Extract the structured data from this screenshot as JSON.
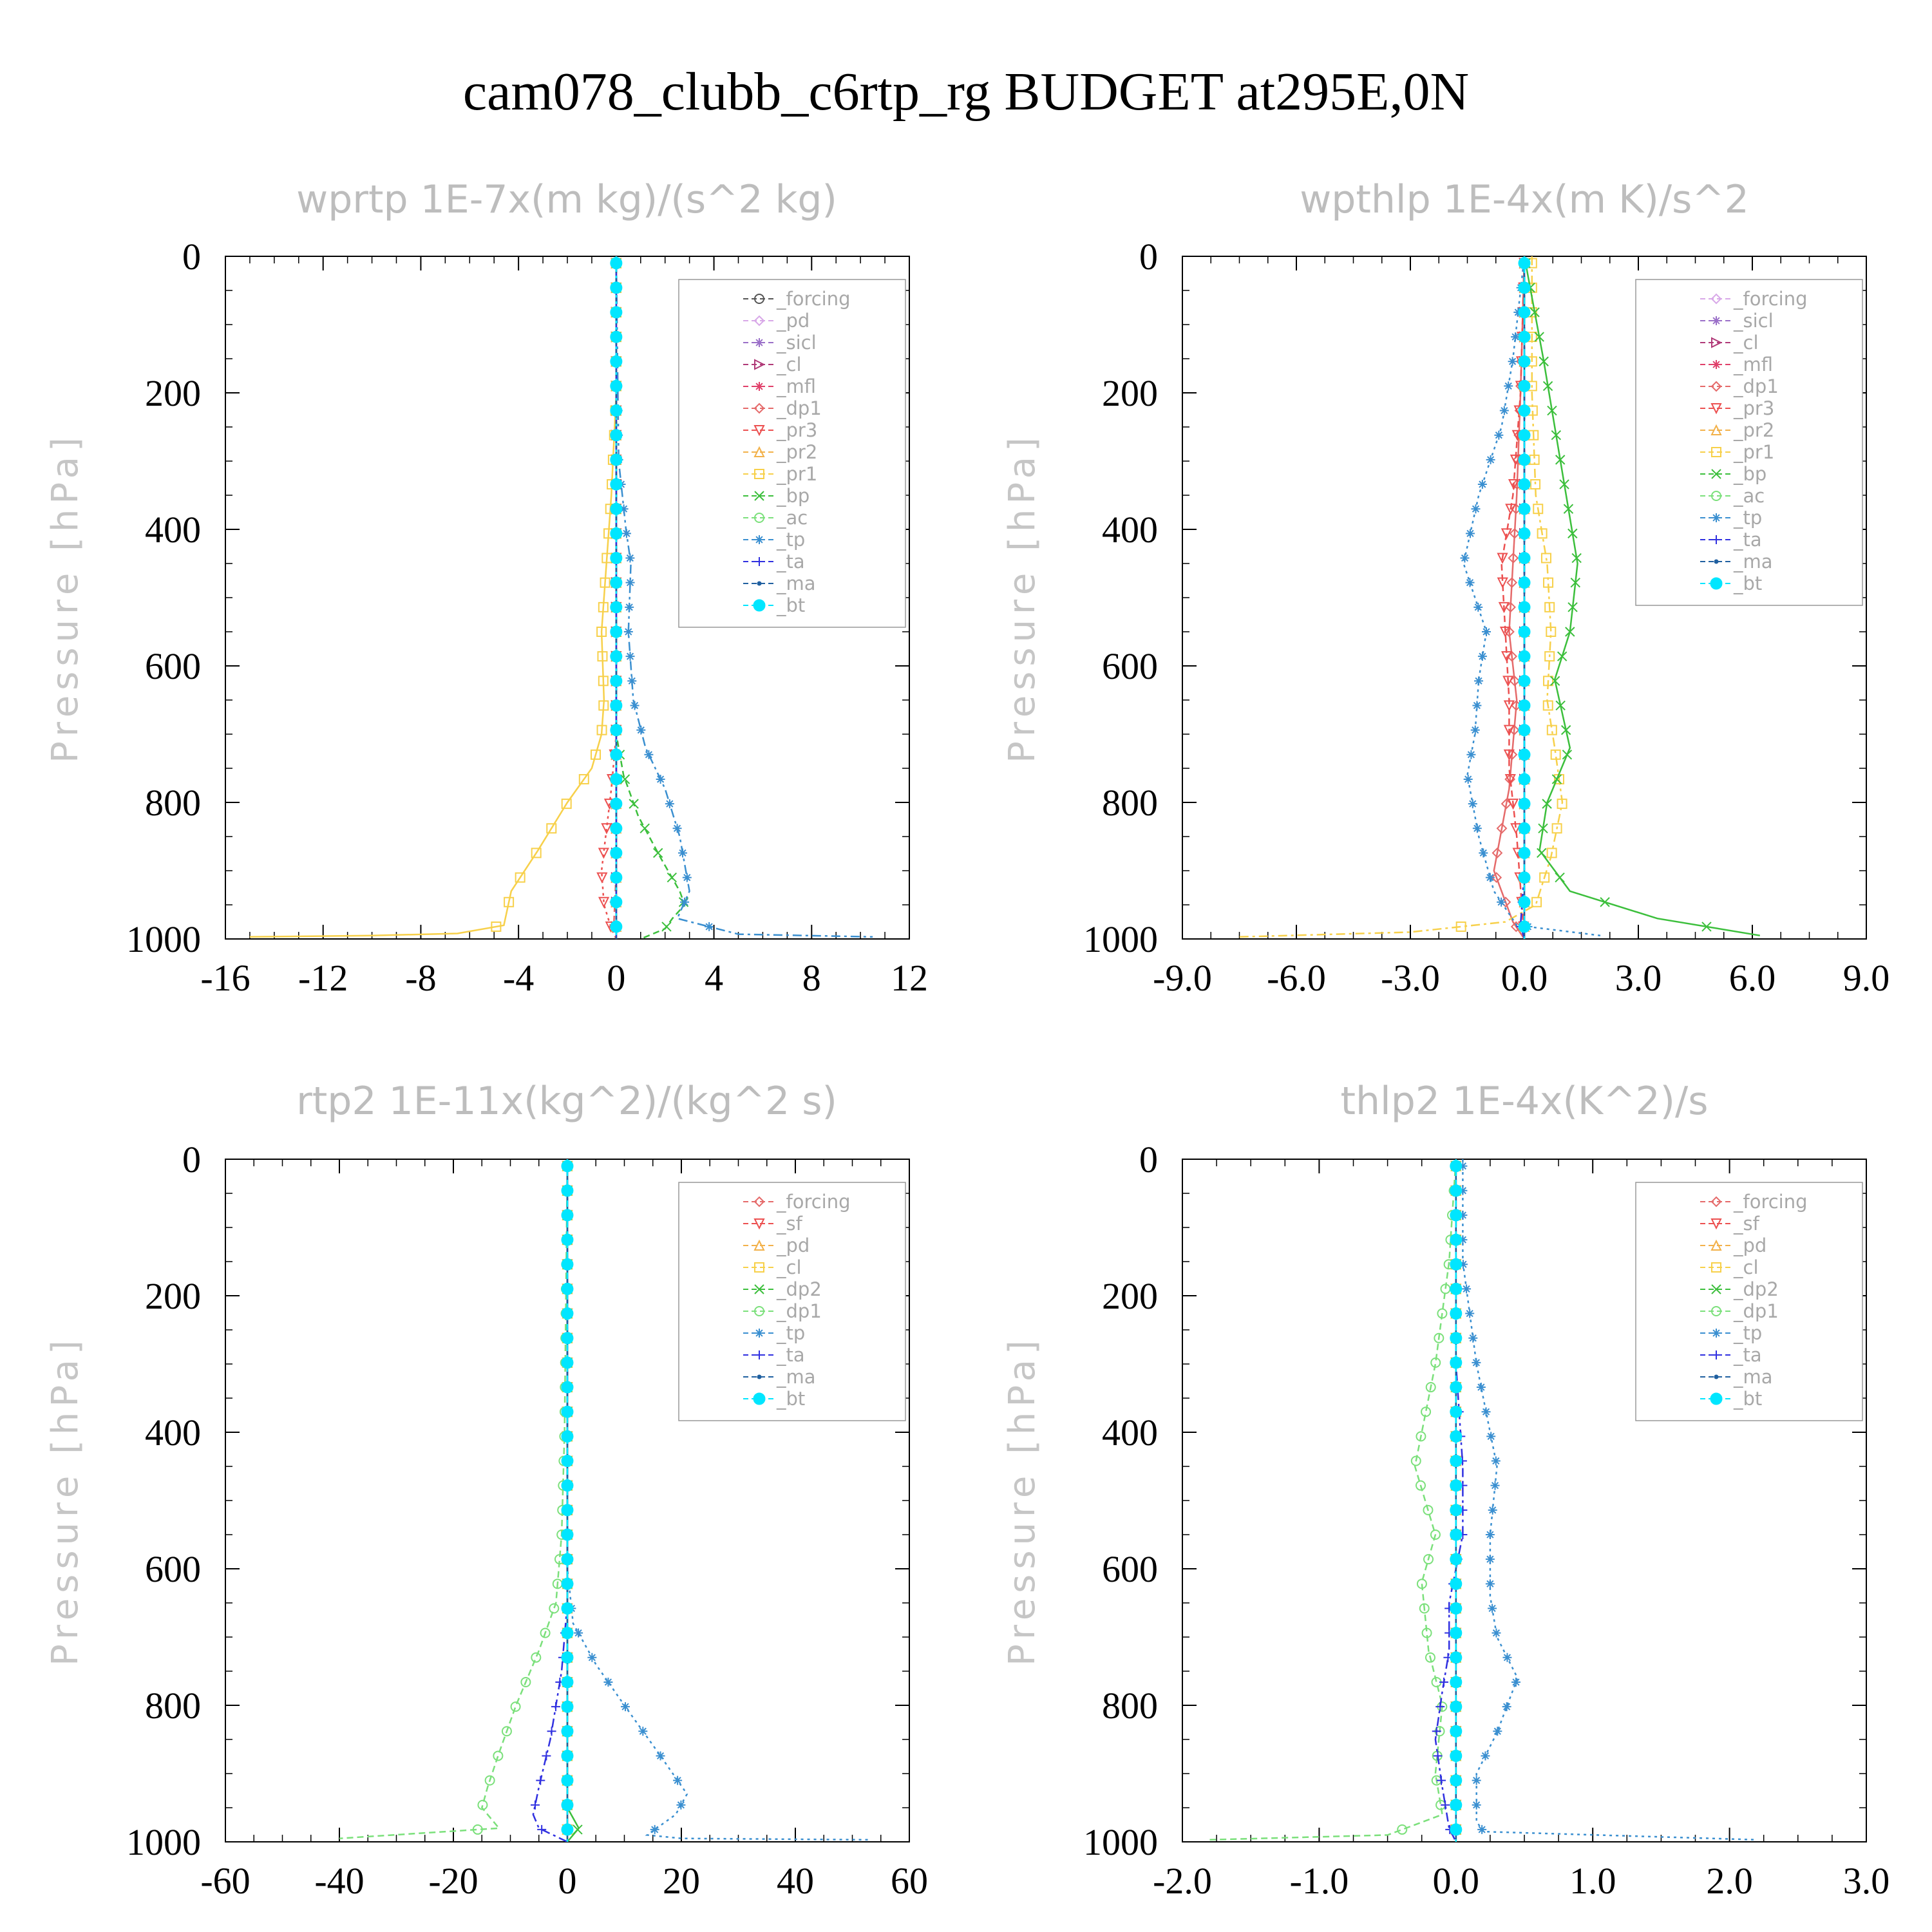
{
  "figure": {
    "title": "cam078_clubb_c6rtp_rg  BUDGET at295E,0N"
  },
  "colors": {
    "forcing": "#555555",
    "pd": "#d8a8e8",
    "sicl": "#9a6fc8",
    "cl": "#b03a78",
    "mfl": "#e0406a",
    "dp1": "#e56a6a",
    "pr3": "#ec5050",
    "pr2": "#f2b14a",
    "pr1": "#f7d04a",
    "bp": "#3cbf3c",
    "ac": "#7be07b",
    "tp": "#3a8fd0",
    "ta": "#3030e0",
    "ma": "#2060a0",
    "bt": "#00e6ff"
  },
  "chart_data": [
    {
      "type": "line",
      "title": "wprtp   1E-7x(m kg)/(s^2 kg)",
      "ylabel": "Pressure [hPa]",
      "xlim": [
        -16,
        12
      ],
      "ylim": [
        1000,
        0
      ],
      "xticks": [
        -16,
        -12,
        -8,
        -4,
        0,
        4,
        8,
        12
      ],
      "xtick_labels": [
        "-16",
        "-12",
        "-8",
        "-4",
        "0",
        "4",
        "8",
        "12"
      ],
      "yticks": [
        0,
        200,
        400,
        600,
        800,
        1000
      ],
      "ytick_labels": [
        "0",
        "200",
        "400",
        "600",
        "800",
        "1000"
      ],
      "legend_position": "top-right",
      "series": [
        {
          "name": "_forcing",
          "key": "forcing",
          "x": [
            0,
            0,
            0
          ],
          "y": [
            0,
            500,
            1000
          ]
        },
        {
          "name": "_pd",
          "key": "pd",
          "x": [
            0,
            0,
            0
          ],
          "y": [
            0,
            500,
            1000
          ]
        },
        {
          "name": "_sicl",
          "key": "sicl",
          "x": [
            0,
            0,
            0
          ],
          "y": [
            0,
            500,
            1000
          ]
        },
        {
          "name": "_cl",
          "key": "cl",
          "x": [
            0,
            0,
            0
          ],
          "y": [
            0,
            500,
            1000
          ]
        },
        {
          "name": "_mfl",
          "key": "mfl",
          "x": [
            0,
            0,
            0
          ],
          "y": [
            0,
            500,
            1000
          ]
        },
        {
          "name": "_dp1",
          "key": "dp1",
          "x": [
            0,
            0,
            0,
            -0.1,
            0
          ],
          "y": [
            0,
            500,
            900,
            980,
            1000
          ]
        },
        {
          "name": "_pr3",
          "key": "pr3",
          "x": [
            0,
            0,
            -0.2,
            -0.4,
            -0.6,
            -0.5,
            -0.2,
            0
          ],
          "y": [
            0,
            700,
            780,
            840,
            900,
            950,
            985,
            1000
          ]
        },
        {
          "name": "_pr2",
          "key": "pr2",
          "x": [
            0,
            0,
            0
          ],
          "y": [
            0,
            500,
            1000
          ]
        },
        {
          "name": "_pr1",
          "key": "pr1",
          "x": [
            0,
            0,
            -0.2,
            -0.4,
            -0.6,
            -0.5,
            -0.6,
            -1.0,
            -2.0,
            -3.2,
            -4.3,
            -4.6,
            -6.5,
            -10,
            -15
          ],
          "y": [
            0,
            200,
            350,
            450,
            550,
            650,
            700,
            750,
            800,
            870,
            930,
            980,
            992,
            995,
            997
          ]
        },
        {
          "name": "_bp",
          "key": "bp",
          "x": [
            0,
            0,
            0.3,
            0.9,
            1.8,
            2.6,
            2.8,
            2.3,
            2.0,
            1.0
          ],
          "y": [
            0,
            700,
            760,
            820,
            880,
            930,
            950,
            970,
            985,
            1000
          ]
        },
        {
          "name": "_ac",
          "key": "ac",
          "x": [
            0,
            0,
            0
          ],
          "y": [
            0,
            500,
            1000
          ]
        },
        {
          "name": "_tp",
          "key": "tp",
          "x": [
            0,
            0.1,
            0.4,
            0.6,
            0.5,
            0.7,
            1.2,
            2.0,
            2.6,
            3.0,
            2.5,
            5.0,
            10.5
          ],
          "y": [
            0,
            300,
            400,
            450,
            550,
            650,
            720,
            780,
            850,
            930,
            970,
            993,
            997
          ]
        },
        {
          "name": "_ta",
          "key": "ta",
          "x": [
            0,
            0,
            0
          ],
          "y": [
            0,
            500,
            1000
          ]
        },
        {
          "name": "_ma",
          "key": "ma",
          "x": [
            0,
            0,
            0
          ],
          "y": [
            0,
            500,
            1000
          ]
        },
        {
          "name": "_bt",
          "key": "bt",
          "x": [
            0,
            0,
            0
          ],
          "y": [
            0,
            500,
            1000
          ]
        }
      ]
    },
    {
      "type": "line",
      "title": "wpthlp   1E-4x(m K)/s^2",
      "ylabel": "Pressure [hPa]",
      "xlim": [
        -9,
        9
      ],
      "ylim": [
        1000,
        0
      ],
      "xticks": [
        -9,
        -6,
        -3,
        0,
        3,
        6,
        9
      ],
      "xtick_labels": [
        "-9.0",
        "-6.0",
        "-3.0",
        "0.0",
        "3.0",
        "6.0",
        "9.0"
      ],
      "yticks": [
        0,
        200,
        400,
        600,
        800,
        1000
      ],
      "ytick_labels": [
        "0",
        "200",
        "400",
        "600",
        "800",
        "1000"
      ],
      "legend_position": "top-right",
      "series": [
        {
          "name": "_forcing",
          "key": "pd",
          "x": [
            0,
            0,
            0
          ],
          "y": [
            0,
            500,
            1000
          ]
        },
        {
          "name": "_sicl",
          "key": "sicl",
          "x": [
            0,
            0,
            0
          ],
          "y": [
            0,
            500,
            1000
          ]
        },
        {
          "name": "_cl",
          "key": "cl",
          "x": [
            0,
            0,
            0
          ],
          "y": [
            0,
            500,
            1000
          ]
        },
        {
          "name": "_mfl",
          "key": "mfl",
          "x": [
            0,
            0,
            0
          ],
          "y": [
            0,
            500,
            1000
          ]
        },
        {
          "name": "_dp1",
          "key": "dp1",
          "x": [
            0,
            -0.1,
            -0.2,
            -0.3,
            -0.4,
            -0.2,
            -0.4,
            -0.8,
            -0.3,
            0
          ],
          "y": [
            0,
            200,
            350,
            450,
            550,
            650,
            780,
            900,
            975,
            1000
          ]
        },
        {
          "name": "_pr3",
          "key": "pr3",
          "x": [
            0,
            -0.1,
            -0.3,
            -0.6,
            -0.5,
            -0.4,
            -0.4,
            -0.2,
            0
          ],
          "y": [
            0,
            200,
            350,
            450,
            550,
            650,
            750,
            850,
            1000
          ]
        },
        {
          "name": "_pr2",
          "key": "pr2",
          "x": [
            0,
            0,
            0
          ],
          "y": [
            0,
            500,
            1000
          ]
        },
        {
          "name": "_pr1",
          "key": "pr1",
          "x": [
            0.2,
            0.2,
            0.3,
            0.6,
            0.7,
            0.6,
            0.8,
            1.0,
            0.7,
            0.3,
            -0.5,
            -3.0,
            -7.5
          ],
          "y": [
            0,
            200,
            350,
            450,
            550,
            650,
            720,
            800,
            880,
            950,
            975,
            990,
            997
          ]
        },
        {
          "name": "_bp",
          "key": "bp",
          "x": [
            0,
            0.5,
            0.8,
            1.1,
            1.4,
            1.2,
            0.8,
            1.2,
            0.6,
            0.4,
            1.2,
            3.5,
            6.2
          ],
          "y": [
            0,
            150,
            250,
            350,
            450,
            550,
            620,
            720,
            800,
            870,
            930,
            970,
            995
          ]
        },
        {
          "name": "_ac",
          "key": "ac",
          "x": [
            0,
            0,
            0
          ],
          "y": [
            0,
            500,
            1000
          ]
        },
        {
          "name": "_tp",
          "key": "tp",
          "x": [
            0,
            -0.3,
            -0.6,
            -1.2,
            -1.6,
            -1.0,
            -1.2,
            -1.3,
            -1.5,
            -1.2,
            -0.8,
            -0.2,
            2.0
          ],
          "y": [
            0,
            150,
            250,
            350,
            450,
            550,
            620,
            700,
            760,
            850,
            930,
            980,
            995
          ]
        },
        {
          "name": "_ta",
          "key": "ta",
          "x": [
            0,
            0,
            0,
            -0.1,
            0
          ],
          "y": [
            0,
            500,
            900,
            980,
            1000
          ]
        },
        {
          "name": "_ma",
          "key": "ma",
          "x": [
            0,
            0,
            0
          ],
          "y": [
            0,
            500,
            1000
          ]
        },
        {
          "name": "_bt",
          "key": "bt",
          "x": [
            0,
            0,
            0
          ],
          "y": [
            0,
            500,
            1000
          ]
        }
      ]
    },
    {
      "type": "line",
      "title": "rtp2   1E-11x(kg^2)/(kg^2 s)",
      "ylabel": "Pressure [hPa]",
      "xlim": [
        -60,
        60
      ],
      "ylim": [
        1000,
        0
      ],
      "xticks": [
        -60,
        -40,
        -20,
        0,
        20,
        40,
        60
      ],
      "xtick_labels": [
        "-60",
        "-40",
        "-20",
        "0",
        "20",
        "40",
        "60"
      ],
      "yticks": [
        0,
        200,
        400,
        600,
        800,
        1000
      ],
      "ytick_labels": [
        "0",
        "200",
        "400",
        "600",
        "800",
        "1000"
      ],
      "legend_position": "top-right",
      "series": [
        {
          "name": "_forcing",
          "key": "dp1",
          "x": [
            0,
            0,
            0
          ],
          "y": [
            0,
            500,
            1000
          ]
        },
        {
          "name": "_sf",
          "key": "pr3",
          "x": [
            0,
            0,
            0
          ],
          "y": [
            0,
            500,
            1000
          ]
        },
        {
          "name": "_pd",
          "key": "pr2",
          "x": [
            0,
            0,
            0
          ],
          "y": [
            0,
            500,
            1000
          ]
        },
        {
          "name": "_cl",
          "key": "pr1",
          "x": [
            0,
            0,
            0
          ],
          "y": [
            0,
            500,
            1000
          ]
        },
        {
          "name": "_dp2",
          "key": "bp",
          "x": [
            0,
            0,
            0,
            2,
            0
          ],
          "y": [
            0,
            500,
            950,
            980,
            1000
          ]
        },
        {
          "name": "_dp1",
          "key": "ac",
          "x": [
            0,
            -0.5,
            -1.0,
            -2.0,
            -5,
            -9,
            -12,
            -14,
            -15,
            -12,
            -40
          ],
          "y": [
            0,
            400,
            550,
            650,
            720,
            800,
            870,
            920,
            950,
            980,
            995
          ]
        },
        {
          "name": "_tp",
          "key": "tp",
          "x": [
            0,
            0,
            1,
            5,
            10,
            16,
            21,
            19,
            14,
            20,
            53
          ],
          "y": [
            0,
            600,
            680,
            740,
            800,
            870,
            930,
            960,
            990,
            995,
            997
          ]
        },
        {
          "name": "_ta",
          "key": "ta",
          "x": [
            0,
            0,
            -1,
            -3,
            -5,
            -6,
            -5,
            -2,
            0
          ],
          "y": [
            0,
            650,
            750,
            850,
            920,
            960,
            980,
            992,
            1000
          ]
        },
        {
          "name": "_ma",
          "key": "ma",
          "x": [
            0,
            0,
            0
          ],
          "y": [
            0,
            500,
            1000
          ]
        },
        {
          "name": "_bt",
          "key": "bt",
          "x": [
            0,
            0,
            0
          ],
          "y": [
            0,
            500,
            1000
          ]
        }
      ]
    },
    {
      "type": "line",
      "title": "thlp2   1E-4x(K^2)/s",
      "ylabel": "Pressure [hPa]",
      "xlim": [
        -2,
        3
      ],
      "ylim": [
        1000,
        0
      ],
      "xticks": [
        -2,
        -1,
        0,
        1,
        2,
        3
      ],
      "xtick_labels": [
        "-2.0",
        "-1.0",
        "0.0",
        "1.0",
        "2.0",
        "3.0"
      ],
      "yticks": [
        0,
        200,
        400,
        600,
        800,
        1000
      ],
      "ytick_labels": [
        "0",
        "200",
        "400",
        "600",
        "800",
        "1000"
      ],
      "legend_position": "top-right",
      "series": [
        {
          "name": "_forcing",
          "key": "dp1",
          "x": [
            0,
            0,
            0
          ],
          "y": [
            0,
            500,
            1000
          ]
        },
        {
          "name": "_sf",
          "key": "pr3",
          "x": [
            0,
            0,
            0
          ],
          "y": [
            0,
            500,
            1000
          ]
        },
        {
          "name": "_pd",
          "key": "pr2",
          "x": [
            0,
            0,
            0
          ],
          "y": [
            0,
            500,
            1000
          ]
        },
        {
          "name": "_cl",
          "key": "pr1",
          "x": [
            0,
            0,
            0
          ],
          "y": [
            0,
            500,
            1000
          ]
        },
        {
          "name": "_dp2",
          "key": "bp",
          "x": [
            0,
            0,
            0
          ],
          "y": [
            0,
            500,
            1000
          ]
        },
        {
          "name": "_dp1",
          "key": "ac",
          "x": [
            0,
            -0.05,
            -0.15,
            -0.25,
            -0.3,
            -0.15,
            -0.25,
            -0.2,
            -0.1,
            -0.15,
            -0.1,
            -0.5,
            -1.8
          ],
          "y": [
            0,
            150,
            300,
            400,
            450,
            550,
            620,
            720,
            800,
            900,
            960,
            990,
            997
          ]
        },
        {
          "name": "_tp",
          "key": "tp",
          "x": [
            0.05,
            0.05,
            0.15,
            0.25,
            0.3,
            0.25,
            0.25,
            0.3,
            0.45,
            0.3,
            0.15,
            0.15,
            0.2,
            2.2
          ],
          "y": [
            0,
            150,
            300,
            400,
            450,
            550,
            640,
            700,
            760,
            840,
            900,
            970,
            985,
            997
          ]
        },
        {
          "name": "_ta",
          "key": "ta",
          "x": [
            0,
            0,
            0.05,
            0.05,
            -0.05,
            -0.05,
            -0.1,
            -0.15,
            -0.1,
            -0.05,
            0
          ],
          "y": [
            0,
            300,
            450,
            550,
            650,
            720,
            780,
            850,
            920,
            980,
            1000
          ]
        },
        {
          "name": "_ma",
          "key": "ma",
          "x": [
            0,
            0,
            0
          ],
          "y": [
            0,
            500,
            1000
          ]
        },
        {
          "name": "_bt",
          "key": "bt",
          "x": [
            0,
            0,
            0
          ],
          "y": [
            0,
            500,
            1000
          ]
        }
      ]
    }
  ]
}
